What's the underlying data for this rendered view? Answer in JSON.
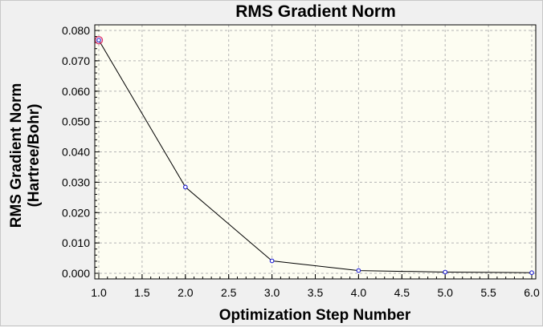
{
  "chart_data": {
    "type": "line",
    "title": "RMS Gradient Norm",
    "xlabel": "Optimization Step Number",
    "ylabel_lines": [
      "RMS Gradient Norm",
      "(Hartree/Bohr)"
    ],
    "xlim": [
      1.0,
      6.0
    ],
    "ylim": [
      0.0,
      0.08
    ],
    "xticks": [
      "1.0",
      "1.5",
      "2.0",
      "2.5",
      "3.0",
      "3.5",
      "4.0",
      "4.5",
      "5.0",
      "5.5",
      "6.0"
    ],
    "yticks": [
      "0.000",
      "0.010",
      "0.020",
      "0.030",
      "0.040",
      "0.050",
      "0.060",
      "0.070",
      "0.080"
    ],
    "grid": true,
    "series": [
      {
        "x": [
          1,
          2,
          3,
          4,
          5,
          6
        ],
        "y": [
          0.0768,
          0.0284,
          0.0041,
          0.0009,
          0.0004,
          0.0002
        ]
      }
    ],
    "highlight_point_index": 0,
    "colors": {
      "plot_background": "#fdfdf2",
      "line": "#000000",
      "marker": "#2b2bd6",
      "highlight": "#e0306a",
      "grid": "#b4b4b4"
    }
  }
}
